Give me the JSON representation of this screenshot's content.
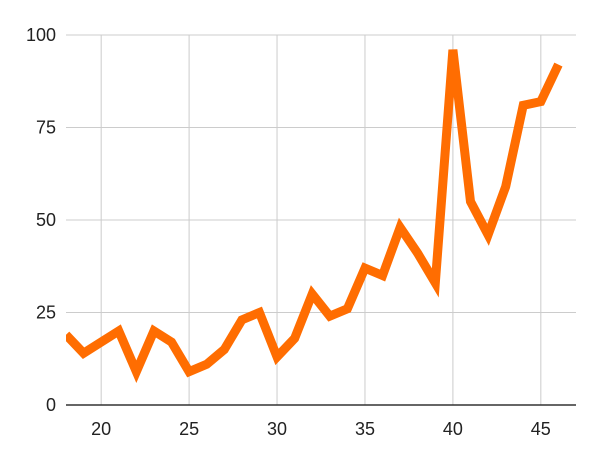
{
  "chart_data": {
    "type": "line",
    "title": "",
    "xlabel": "",
    "ylabel": "",
    "xlim": [
      18,
      47
    ],
    "ylim": [
      0,
      100
    ],
    "x_ticks": [
      20,
      25,
      30,
      35,
      40,
      45
    ],
    "y_ticks": [
      0,
      25,
      50,
      75,
      100
    ],
    "grid": true,
    "legend": "none",
    "series": [
      {
        "color": "#ff6d01",
        "x": [
          18,
          19,
          20,
          21,
          22,
          23,
          24,
          25,
          26,
          27,
          28,
          29,
          30,
          31,
          32,
          33,
          34,
          35,
          36,
          37,
          38,
          39,
          40,
          41,
          42,
          43,
          44,
          45,
          46
        ],
        "y": [
          19,
          14,
          17,
          20,
          9,
          20,
          17,
          9,
          11,
          15,
          23,
          25,
          13,
          18,
          30,
          24,
          26,
          37,
          35,
          48,
          41,
          33,
          96,
          55,
          46,
          59,
          81,
          82,
          92
        ]
      }
    ]
  }
}
